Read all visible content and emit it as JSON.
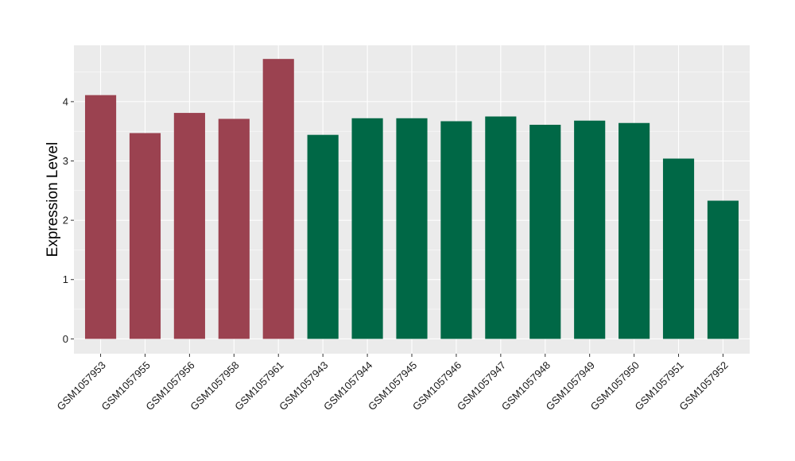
{
  "chart_data": {
    "type": "bar",
    "title": "",
    "xlabel": "",
    "ylabel": "Expression Level",
    "ylim": [
      -0.25,
      4.95
    ],
    "yticks": [
      0,
      1,
      2,
      3,
      4
    ],
    "grid": true,
    "categories": [
      "GSM1057953",
      "GSM1057955",
      "GSM1057956",
      "GSM1057958",
      "GSM1057961",
      "GSM1057943",
      "GSM1057944",
      "GSM1057945",
      "GSM1057946",
      "GSM1057947",
      "GSM1057948",
      "GSM1057949",
      "GSM1057950",
      "GSM1057951",
      "GSM1057952"
    ],
    "values": [
      4.11,
      3.47,
      3.81,
      3.71,
      4.72,
      3.44,
      3.72,
      3.72,
      3.67,
      3.75,
      3.61,
      3.68,
      3.64,
      3.04,
      2.33
    ],
    "group_colors": [
      "#9b4250",
      "#9b4250",
      "#9b4250",
      "#9b4250",
      "#9b4250",
      "#006846",
      "#006846",
      "#006846",
      "#006846",
      "#006846",
      "#006846",
      "#006846",
      "#006846",
      "#006846",
      "#006846"
    ],
    "panel_background": "#ebebeb",
    "gridline_color": "#ffffff"
  }
}
